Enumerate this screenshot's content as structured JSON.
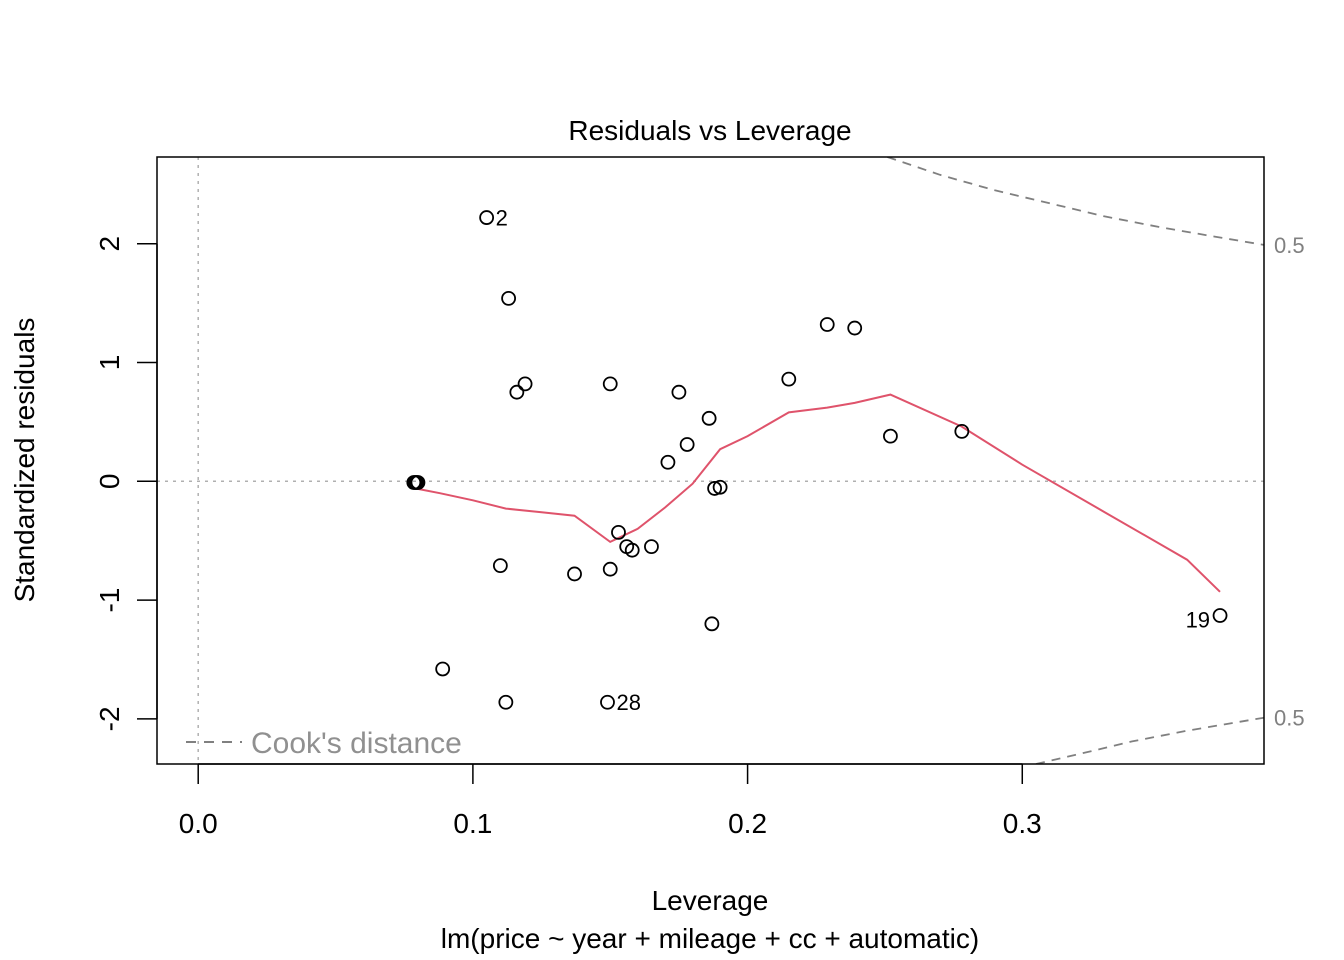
{
  "chart_data": {
    "type": "scatter",
    "title": "Residuals vs Leverage",
    "xlabel": "Leverage",
    "sublabel": "lm(price ~ year + mileage + cc + automatic)",
    "ylabel": "Standardized residuals",
    "xlim": [
      -0.015,
      0.388
    ],
    "ylim": [
      -2.38,
      2.73
    ],
    "xticks": [
      0.0,
      0.1,
      0.2,
      0.3
    ],
    "xtick_labels": [
      "0.0",
      "0.1",
      "0.2",
      "0.3"
    ],
    "yticks": [
      -2,
      -1,
      0,
      1,
      2
    ],
    "ytick_labels": [
      "-2",
      "-1",
      "0",
      "1",
      "2"
    ],
    "points": [
      {
        "x": 0.105,
        "y": 2.22
      },
      {
        "x": 0.113,
        "y": 1.54
      },
      {
        "x": 0.229,
        "y": 1.32
      },
      {
        "x": 0.239,
        "y": 1.29
      },
      {
        "x": 0.215,
        "y": 0.86
      },
      {
        "x": 0.119,
        "y": 0.82
      },
      {
        "x": 0.15,
        "y": 0.82
      },
      {
        "x": 0.116,
        "y": 0.75
      },
      {
        "x": 0.175,
        "y": 0.75
      },
      {
        "x": 0.186,
        "y": 0.53
      },
      {
        "x": 0.278,
        "y": 0.42
      },
      {
        "x": 0.252,
        "y": 0.38
      },
      {
        "x": 0.178,
        "y": 0.31
      },
      {
        "x": 0.171,
        "y": 0.16
      },
      {
        "x": 0.079,
        "y": -0.01
      },
      {
        "x": 0.0795,
        "y": -0.01
      },
      {
        "x": 0.0785,
        "y": -0.01
      },
      {
        "x": 0.08,
        "y": -0.01
      },
      {
        "x": 0.19,
        "y": -0.05
      },
      {
        "x": 0.188,
        "y": -0.06
      },
      {
        "x": 0.153,
        "y": -0.43
      },
      {
        "x": 0.165,
        "y": -0.55
      },
      {
        "x": 0.156,
        "y": -0.55
      },
      {
        "x": 0.158,
        "y": -0.58
      },
      {
        "x": 0.11,
        "y": -0.71
      },
      {
        "x": 0.15,
        "y": -0.74
      },
      {
        "x": 0.137,
        "y": -0.78
      },
      {
        "x": 0.372,
        "y": -1.13
      },
      {
        "x": 0.187,
        "y": -1.2
      },
      {
        "x": 0.089,
        "y": -1.58
      },
      {
        "x": 0.112,
        "y": -1.86
      },
      {
        "x": 0.149,
        "y": -1.86
      }
    ],
    "point_labels": [
      {
        "x": 0.105,
        "y": 2.22,
        "text": "2",
        "side": "right"
      },
      {
        "x": 0.149,
        "y": -1.86,
        "text": "28",
        "side": "right"
      },
      {
        "x": 0.372,
        "y": -1.13,
        "text": "19",
        "side": "left"
      }
    ],
    "smooth_line": {
      "color": "#DF536B",
      "x": [
        0.079,
        0.088,
        0.1,
        0.112,
        0.125,
        0.137,
        0.15,
        0.16,
        0.17,
        0.18,
        0.19,
        0.2,
        0.215,
        0.229,
        0.239,
        0.252,
        0.278,
        0.3,
        0.33,
        0.36,
        0.372
      ],
      "y": [
        -0.06,
        -0.1,
        -0.16,
        -0.23,
        -0.26,
        -0.29,
        -0.51,
        -0.4,
        -0.22,
        -0.02,
        0.27,
        0.38,
        0.58,
        0.62,
        0.66,
        0.73,
        0.46,
        0.14,
        -0.26,
        -0.66,
        -0.93
      ]
    },
    "reference_lines": {
      "h": 0,
      "v": 0
    },
    "cooks_distance": {
      "label": "0.5",
      "color": "#808080",
      "upper": {
        "x": [
          0.2509,
          0.27,
          0.29,
          0.31,
          0.33,
          0.35,
          0.37,
          0.388
        ],
        "y": [
          2.73,
          2.58,
          2.45,
          2.34,
          2.23,
          2.14,
          2.06,
          1.99
        ]
      },
      "lower": {
        "x": [
          0.305,
          0.32,
          0.34,
          0.36,
          0.388
        ],
        "y": [
          -2.38,
          -2.3,
          -2.19,
          -2.1,
          -1.99
        ]
      }
    },
    "legend": {
      "text": "Cook's distance",
      "position": "bottom-left"
    }
  }
}
